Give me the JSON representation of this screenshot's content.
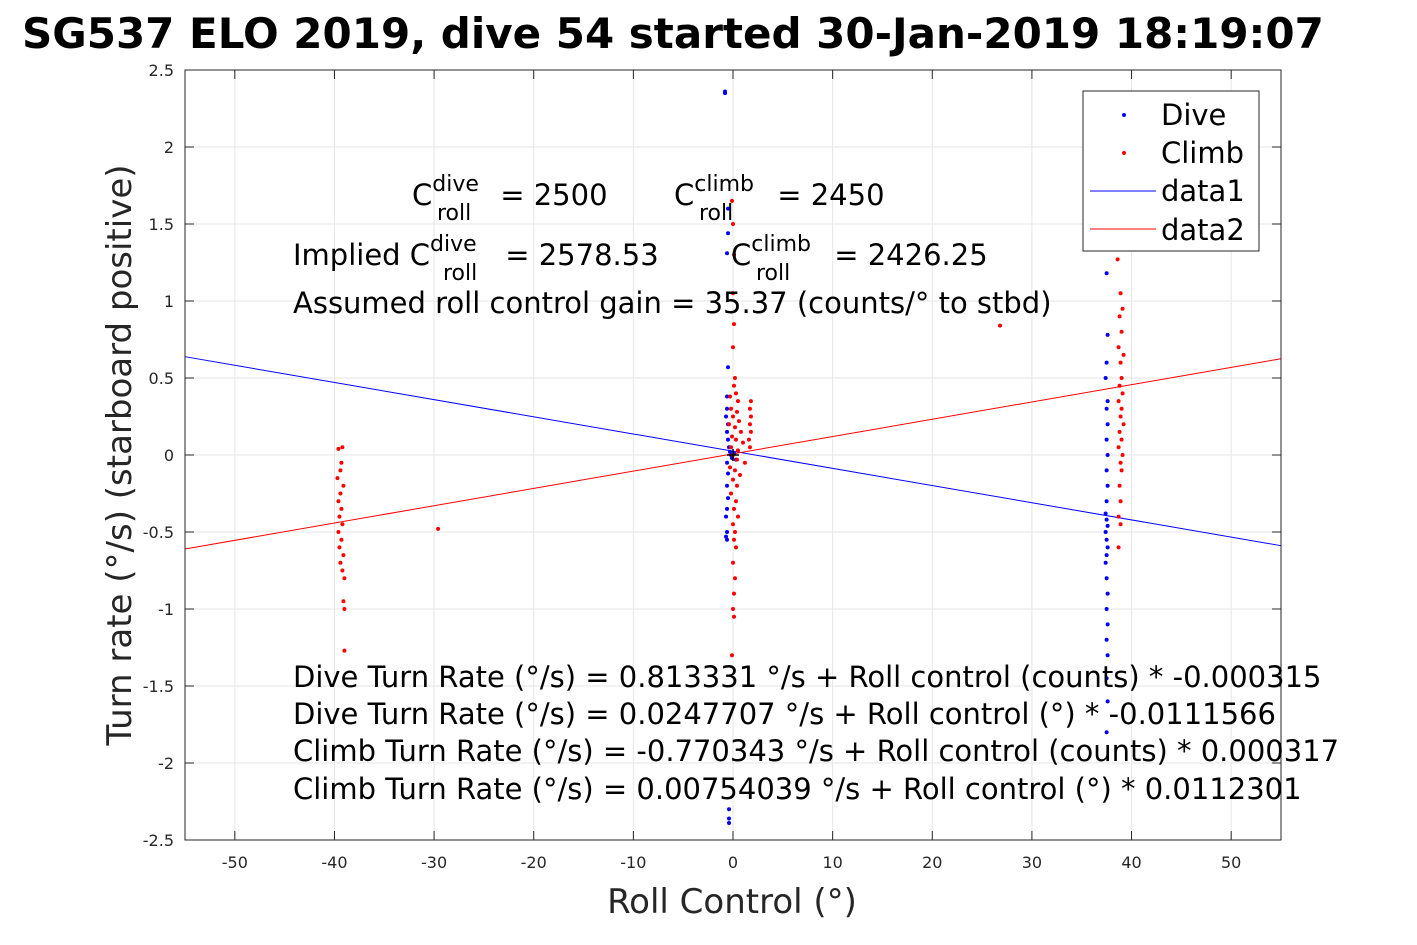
{
  "chart_data": {
    "type": "scatter",
    "title": "SG537 ELO 2019, dive 54 started 30-Jan-2019 18:19:07",
    "xlabel": "Roll Control (°)",
    "ylabel": "Turn rate (°/s) (starboard positive)",
    "xlim": [
      -55,
      55
    ],
    "ylim": [
      -2.5,
      2.5
    ],
    "xticks": [
      -50,
      -40,
      -30,
      -20,
      -10,
      0,
      10,
      20,
      30,
      40,
      50
    ],
    "yticks": [
      -2.5,
      -2,
      -1.5,
      -1,
      -0.5,
      0,
      0.5,
      1,
      1.5,
      2,
      2.5
    ],
    "xtick_labels": [
      "-50",
      "-40",
      "-30",
      "-20",
      "-10",
      "0",
      "10",
      "20",
      "30",
      "40",
      "50"
    ],
    "ytick_labels": [
      "-2.5",
      "-2",
      "-1.5",
      "-1",
      "-0.5",
      "0",
      "0.5",
      "1",
      "1.5",
      "2",
      "2.5"
    ],
    "grid": true,
    "legend_position": "top-right",
    "series": [
      {
        "name": "Dive",
        "kind": "points",
        "color": "#0000ff",
        "points": [
          [
            -0.8,
            2.36
          ],
          [
            -0.8,
            2.35
          ],
          [
            -0.5,
            1.6
          ],
          [
            -0.5,
            1.44
          ],
          [
            -0.6,
            1.31
          ],
          [
            -0.5,
            0.57
          ],
          [
            -0.6,
            0.38
          ],
          [
            -0.6,
            0.3
          ],
          [
            -0.7,
            0.25
          ],
          [
            -0.5,
            0.2
          ],
          [
            -0.6,
            0.15
          ],
          [
            -0.5,
            0.1
          ],
          [
            -0.4,
            0.05
          ],
          [
            -0.3,
            0.02
          ],
          [
            -0.2,
            0.0
          ],
          [
            -0.1,
            -0.02
          ],
          [
            0.1,
            0.01
          ],
          [
            0.3,
            -0.03
          ],
          [
            -0.6,
            -0.05
          ],
          [
            -0.5,
            -0.12
          ],
          [
            -0.6,
            -0.2
          ],
          [
            -0.5,
            -0.28
          ],
          [
            -0.6,
            -0.35
          ],
          [
            -0.7,
            -0.4
          ],
          [
            -0.6,
            -0.5
          ],
          [
            -0.7,
            -0.53
          ],
          [
            -0.6,
            -0.55
          ],
          [
            -0.4,
            -2.3
          ],
          [
            -0.4,
            -2.36
          ],
          [
            -0.4,
            -2.39
          ],
          [
            37.5,
            1.18
          ],
          [
            37.6,
            0.78
          ],
          [
            37.5,
            0.6
          ],
          [
            37.4,
            0.5
          ],
          [
            37.6,
            0.35
          ],
          [
            37.5,
            0.3
          ],
          [
            37.6,
            0.2
          ],
          [
            37.5,
            0.1
          ],
          [
            37.6,
            0.0
          ],
          [
            37.5,
            -0.1
          ],
          [
            37.6,
            -0.2
          ],
          [
            37.5,
            -0.3
          ],
          [
            37.4,
            -0.38
          ],
          [
            37.5,
            -0.42
          ],
          [
            37.6,
            -0.46
          ],
          [
            37.4,
            -0.5
          ],
          [
            37.5,
            -0.55
          ],
          [
            37.6,
            -0.6
          ],
          [
            37.5,
            -0.65
          ],
          [
            37.4,
            -0.7
          ],
          [
            37.5,
            -0.8
          ],
          [
            37.6,
            -0.9
          ],
          [
            37.5,
            -1.0
          ],
          [
            37.6,
            -1.1
          ],
          [
            37.5,
            -1.2
          ],
          [
            37.6,
            -1.3
          ],
          [
            37.5,
            -1.45
          ],
          [
            37.6,
            -1.6
          ],
          [
            37.5,
            -1.8
          ]
        ]
      },
      {
        "name": "Climb",
        "kind": "points",
        "color": "#ff0000",
        "points": [
          [
            -39.2,
            0.05
          ],
          [
            -39.6,
            0.04
          ],
          [
            -39.3,
            -0.05
          ],
          [
            -39.4,
            -0.1
          ],
          [
            -39.7,
            -0.15
          ],
          [
            -39.1,
            -0.2
          ],
          [
            -39.4,
            -0.25
          ],
          [
            -39.6,
            -0.3
          ],
          [
            -39.3,
            -0.35
          ],
          [
            -39.5,
            -0.4
          ],
          [
            -39.2,
            -0.45
          ],
          [
            -39.6,
            -0.5
          ],
          [
            -39.3,
            -0.55
          ],
          [
            -39.5,
            -0.6
          ],
          [
            -39.1,
            -0.65
          ],
          [
            -39.4,
            -0.7
          ],
          [
            -39.2,
            -0.75
          ],
          [
            -39.0,
            -0.8
          ],
          [
            -39.1,
            -0.95
          ],
          [
            -39.0,
            -1.0
          ],
          [
            -39.0,
            -1.27
          ],
          [
            -29.6,
            -0.48
          ],
          [
            26.8,
            0.84
          ],
          [
            -0.1,
            1.65
          ],
          [
            0.0,
            1.5
          ],
          [
            0.1,
            1.3
          ],
          [
            0.0,
            1.05
          ],
          [
            0.1,
            0.85
          ],
          [
            0.0,
            0.7
          ],
          [
            0.2,
            0.5
          ],
          [
            0.1,
            0.45
          ],
          [
            0.3,
            0.4
          ],
          [
            -0.3,
            0.38
          ],
          [
            0.5,
            0.35
          ],
          [
            -0.2,
            0.3
          ],
          [
            0.4,
            0.28
          ],
          [
            0.0,
            0.25
          ],
          [
            0.6,
            0.22
          ],
          [
            -0.4,
            0.2
          ],
          [
            0.2,
            0.18
          ],
          [
            0.8,
            0.15
          ],
          [
            -0.1,
            0.12
          ],
          [
            0.3,
            0.1
          ],
          [
            1.0,
            0.08
          ],
          [
            -0.2,
            0.05
          ],
          [
            0.5,
            0.03
          ],
          [
            0.0,
            0.0
          ],
          [
            0.4,
            -0.03
          ],
          [
            1.2,
            -0.05
          ],
          [
            -0.3,
            -0.08
          ],
          [
            0.2,
            -0.1
          ],
          [
            0.7,
            -0.13
          ],
          [
            0.0,
            -0.16
          ],
          [
            0.4,
            -0.2
          ],
          [
            -0.2,
            -0.25
          ],
          [
            0.3,
            -0.3
          ],
          [
            0.1,
            -0.35
          ],
          [
            0.5,
            -0.4
          ],
          [
            0.0,
            -0.45
          ],
          [
            0.2,
            -0.5
          ],
          [
            0.1,
            -0.55
          ],
          [
            0.3,
            -0.6
          ],
          [
            0.0,
            -0.7
          ],
          [
            0.2,
            -0.8
          ],
          [
            0.1,
            -0.9
          ],
          [
            0.0,
            -1.0
          ],
          [
            0.1,
            -1.05
          ],
          [
            -0.1,
            -1.3
          ],
          [
            1.8,
            0.35
          ],
          [
            1.7,
            0.3
          ],
          [
            1.8,
            0.25
          ],
          [
            1.7,
            0.2
          ],
          [
            1.8,
            0.15
          ],
          [
            1.6,
            0.1
          ],
          [
            1.7,
            0.05
          ],
          [
            38.6,
            1.27
          ],
          [
            38.9,
            1.05
          ],
          [
            39.1,
            0.95
          ],
          [
            38.8,
            0.9
          ],
          [
            39.0,
            0.8
          ],
          [
            38.7,
            0.7
          ],
          [
            39.2,
            0.65
          ],
          [
            38.9,
            0.6
          ],
          [
            39.0,
            0.5
          ],
          [
            38.8,
            0.45
          ],
          [
            39.1,
            0.4
          ],
          [
            38.7,
            0.35
          ],
          [
            39.0,
            0.3
          ],
          [
            38.9,
            0.25
          ],
          [
            39.2,
            0.2
          ],
          [
            38.8,
            0.15
          ],
          [
            39.0,
            0.1
          ],
          [
            38.7,
            0.05
          ],
          [
            39.1,
            0.0
          ],
          [
            38.9,
            -0.05
          ],
          [
            39.0,
            -0.1
          ],
          [
            38.8,
            -0.2
          ],
          [
            38.9,
            -0.3
          ],
          [
            38.7,
            -0.4
          ],
          [
            38.9,
            -0.45
          ],
          [
            38.7,
            -0.6
          ]
        ]
      },
      {
        "name": "data1",
        "kind": "line",
        "color": "#0000ff",
        "x": [
          -55,
          55
        ],
        "y": [
          0.6384,
          -0.5889
        ]
      },
      {
        "name": "data2",
        "kind": "line",
        "color": "#ff0000",
        "x": [
          -55,
          55
        ],
        "y": [
          -0.6101,
          0.6252
        ]
      }
    ]
  },
  "annotations": {
    "line1": {
      "c_dive_base": "C",
      "c_dive_sup": "dive",
      "c_dive_sub": "roll",
      "c_dive_val": " = 2500",
      "c_climb_base": "C",
      "c_climb_sup": "climb",
      "c_climb_sub": "roll",
      "c_climb_val": " = 2450"
    },
    "line2": {
      "prefix": "Implied C",
      "dive_sup": "dive",
      "dive_sub": "roll",
      "dive_val": " = 2578.53",
      "climb_base": "C",
      "climb_sup": "climb",
      "climb_sub": "roll",
      "climb_val": " = 2426.25"
    },
    "gain": "Assumed roll control gain = 35.37 (counts/° to stbd)",
    "fit_lines": [
      "Dive Turn Rate (°/s) = 0.813331 °/s + Roll control (counts) * -0.000315",
      "Dive Turn Rate (°/s) = 0.0247707 °/s + Roll control (°) * -0.0111566",
      "Climb Turn Rate (°/s) = -0.770343 °/s + Roll control (counts) * 0.000317",
      "Climb Turn Rate (°/s) = 0.00754039 °/s + Roll control (°) * 0.0112301"
    ]
  }
}
